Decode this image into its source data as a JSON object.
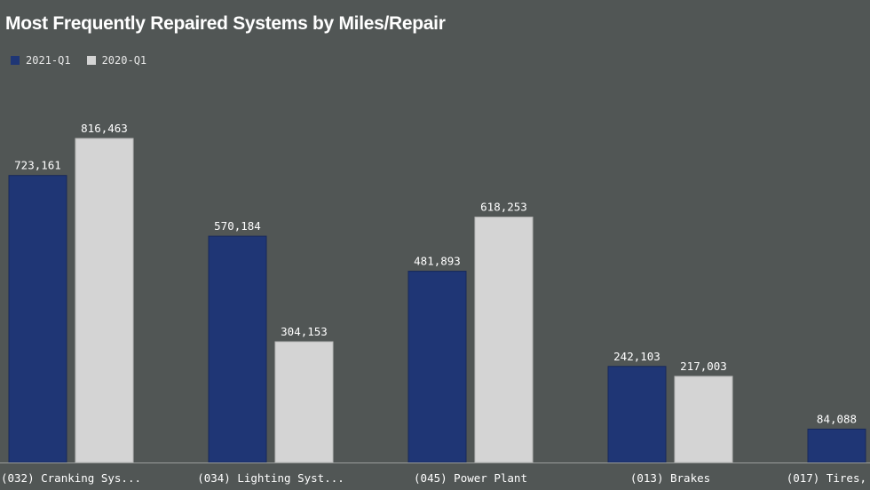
{
  "chart_data": {
    "type": "bar",
    "title": "Most Frequently Repaired Systems by Miles/Repair",
    "legend_position": "top-left",
    "categories": [
      "(032) Cranking Sys...",
      "(034) Lighting Syst...",
      "(045) Power Plant",
      "(013) Brakes",
      "(017) Tires,"
    ],
    "series": [
      {
        "name": "2021-Q1",
        "color": "#1f3675",
        "values": [
          723161,
          570184,
          481893,
          242103,
          84088
        ]
      },
      {
        "name": "2020-Q1",
        "color": "#d4d4d4",
        "values": [
          816463,
          304153,
          618253,
          217003,
          null
        ]
      }
    ],
    "value_labels": [
      [
        "723,161",
        "570,184",
        "481,893",
        "242,103",
        "84,088"
      ],
      [
        "816,463",
        "304,153",
        "618,253",
        "217,003",
        ""
      ]
    ],
    "ylim": [
      0,
      850000
    ],
    "grid": false
  }
}
